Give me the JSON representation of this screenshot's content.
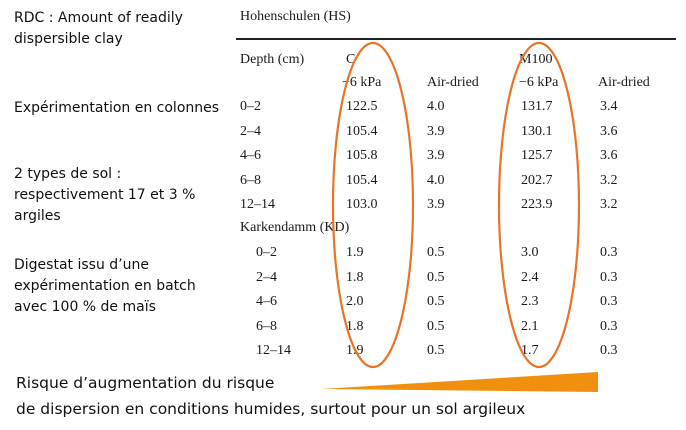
{
  "left_notes": [
    "RDC : Amount of readily dispersible clay",
    "Expérimentation en colonnes",
    "2 types de sol : respectivement 17 et 3 % argiles",
    "Digestat issu d’une expérimentation en batch avec 100 % de maïs"
  ],
  "table": {
    "title": "Hohenschulen (HS)",
    "depth_header": "Depth (cm)",
    "group_c": "C",
    "group_m": "M100",
    "sub_headers": [
      "−6 kPa",
      "Air-dried",
      "−6 kPa",
      "Air-dried"
    ],
    "section2_title": "Karkendamm (KD)",
    "hs_rows": [
      {
        "depth": "0–2",
        "c_6": "122.5",
        "c_ad": "4.0",
        "m_6": "131.7",
        "m_ad": "3.4"
      },
      {
        "depth": "2–4",
        "c_6": "105.4",
        "c_ad": "3.9",
        "m_6": "130.1",
        "m_ad": "3.6"
      },
      {
        "depth": "4–6",
        "c_6": "105.8",
        "c_ad": "3.9",
        "m_6": "125.7",
        "m_ad": "3.6"
      },
      {
        "depth": "6–8",
        "c_6": "105.4",
        "c_ad": "4.0",
        "m_6": "202.7",
        "m_ad": "3.2"
      },
      {
        "depth": "12–14",
        "c_6": "103.0",
        "c_ad": "3.9",
        "m_6": "223.9",
        "m_ad": "3.2"
      }
    ],
    "kd_rows": [
      {
        "depth": "0–2",
        "c_6": "1.9",
        "c_ad": "0.5",
        "m_6": "3.0",
        "m_ad": "0.3"
      },
      {
        "depth": "2–4",
        "c_6": "1.8",
        "c_ad": "0.5",
        "m_6": "2.4",
        "m_ad": "0.3"
      },
      {
        "depth": "4–6",
        "c_6": "2.0",
        "c_ad": "0.5",
        "m_6": "2.3",
        "m_ad": "0.3"
      },
      {
        "depth": "6–8",
        "c_6": "1.8",
        "c_ad": "0.5",
        "m_6": "2.1",
        "m_ad": "0.3"
      },
      {
        "depth": "12–14",
        "c_6": "1.9",
        "c_ad": "0.5",
        "m_6": "1.7",
        "m_ad": "0.3"
      }
    ]
  },
  "caption": {
    "line1": "Risque d’augmentation du risque",
    "line2": "de dispersion en conditions humides, surtout pour un sol argileux"
  },
  "colors": {
    "ellipse": "#e8742a",
    "wedge": "#f0900e"
  }
}
